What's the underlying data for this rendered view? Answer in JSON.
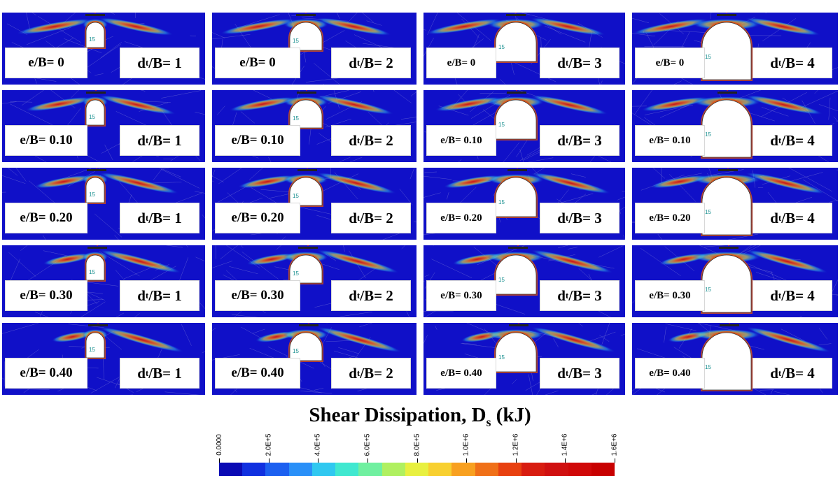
{
  "figure": {
    "rows": [
      {
        "e_label": "e/B= 0"
      },
      {
        "e_label": "e/B= 0.10"
      },
      {
        "e_label": "e/B= 0.20"
      },
      {
        "e_label": "e/B= 0.30"
      },
      {
        "e_label": "e/B= 0.40"
      }
    ],
    "columns": [
      {
        "d_prefix": "d",
        "d_sub": "t",
        "d_suffix": "/B= 1"
      },
      {
        "d_prefix": "d",
        "d_sub": "t",
        "d_suffix": "/B= 2"
      },
      {
        "d_prefix": "d",
        "d_sub": "t",
        "d_suffix": "/B= 3"
      },
      {
        "d_prefix": "d",
        "d_sub": "t",
        "d_suffix": "/B= 4"
      }
    ],
    "tunnel_number": "15",
    "eccentricity_values": [
      0,
      0.1,
      0.2,
      0.3,
      0.4
    ],
    "depth_ratios": [
      1,
      2,
      3,
      4
    ]
  },
  "legend": {
    "title_main": "Shear Dissipation, D",
    "title_sub": "s",
    "title_unit": " (kJ)",
    "ticks": [
      "0.0000",
      "2.0E+5",
      "4.0E+5",
      "6.0E+5",
      "8.0E+5",
      "1.0E+6",
      "1.2E+6",
      "1.4E+6",
      "1.6E+6"
    ],
    "range": [
      0,
      1600000
    ],
    "colors": [
      "#0a0ab4",
      "#1030e0",
      "#1c60f0",
      "#2a90f8",
      "#30c8f0",
      "#40e8d0",
      "#70f0a0",
      "#b0f060",
      "#e8f040",
      "#f8d030",
      "#f8a020",
      "#f07018",
      "#e84010",
      "#d81c10",
      "#d01010",
      "#d00808",
      "#c80000"
    ]
  }
}
